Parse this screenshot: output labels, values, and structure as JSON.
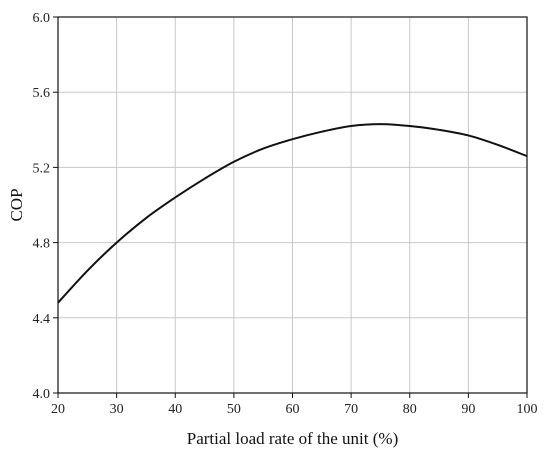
{
  "chart_data": {
    "type": "line",
    "title": "",
    "xlabel": "Partial load rate of the unit (%)",
    "ylabel": "COP",
    "xlim": [
      20,
      100
    ],
    "ylim": [
      4.0,
      6.0
    ],
    "grid": true,
    "x_ticks": [
      "20",
      "30",
      "40",
      "50",
      "60",
      "70",
      "80",
      "90",
      "100"
    ],
    "y_ticks": [
      "4.0",
      "4.4",
      "4.8",
      "5.2",
      "5.6",
      "6.0"
    ],
    "series": [
      {
        "x": [
          20,
          25,
          30,
          35,
          40,
          45,
          50,
          55,
          60,
          65,
          70,
          75,
          80,
          85,
          90,
          95,
          100
        ],
        "y": [
          4.48,
          4.65,
          4.8,
          4.93,
          5.04,
          5.14,
          5.23,
          5.3,
          5.35,
          5.39,
          5.42,
          5.43,
          5.42,
          5.4,
          5.37,
          5.32,
          5.26
        ]
      }
    ],
    "line_color": "#111111",
    "grid_color": "#c8c8c8"
  }
}
